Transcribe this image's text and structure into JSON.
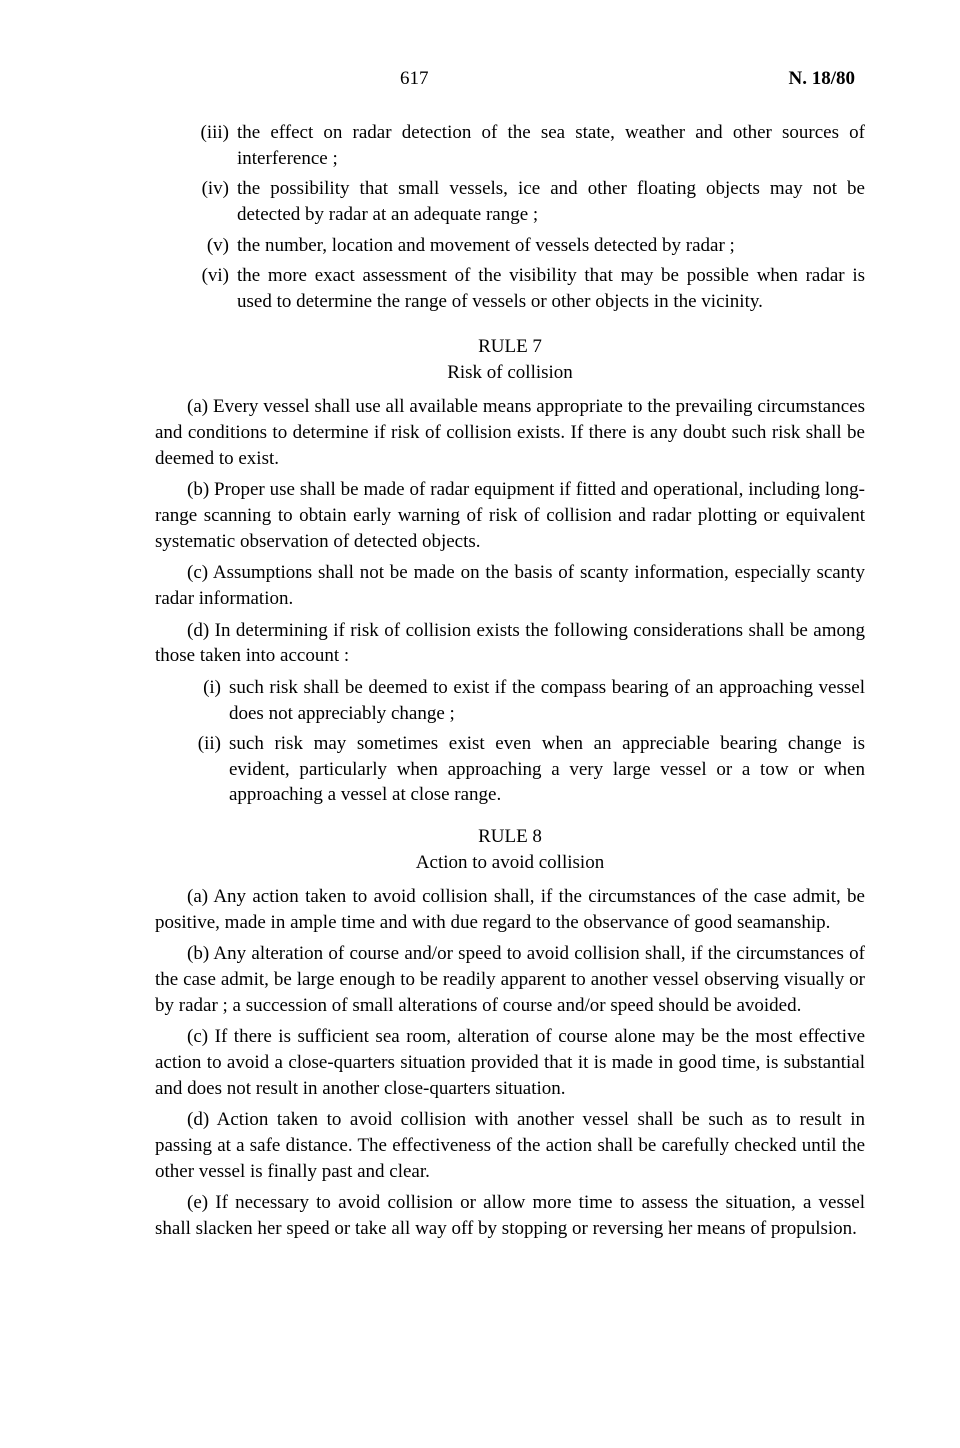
{
  "header": {
    "page_number": "617",
    "doc_ref": "N. 18/80"
  },
  "top_items": [
    {
      "marker": "(iii)",
      "text": "the effect on radar detection of the sea state, weather and other sources of interference ;"
    },
    {
      "marker": "(iv)",
      "text": "the possibility that small vessels, ice and other floating objects may not be detected by radar at an adequate range ;"
    },
    {
      "marker": "(v)",
      "text": "the number, location and movement of vessels detected by radar ;"
    },
    {
      "marker": "(vi)",
      "text": "the more exact assessment of the visibility that may be possible when radar is used to determine the range of vessels or other objects in the vicinity."
    }
  ],
  "rule7": {
    "heading": "RULE 7",
    "subtitle": "Risk of collision",
    "paras": [
      "(a) Every vessel shall use all available means appropriate to the prevailing circumstances and conditions to determine if risk of collision exists. If there is any doubt such risk shall be deemed to exist.",
      "(b) Proper use shall be made of radar equipment if fitted and operational, including long-range scanning to obtain early warning of risk of collision and radar plotting or equivalent systematic observation of detected objects.",
      "(c) Assumptions shall not be made on the basis of scanty information, especially scanty radar information.",
      "(d) In determining if risk of collision exists the following considerations shall be among those taken into account :"
    ],
    "sub_items": [
      {
        "marker": "(i)",
        "text": "such risk shall be deemed to exist if the compass bearing of an approaching vessel does not appreciably change ;"
      },
      {
        "marker": "(ii)",
        "text": "such risk may sometimes exist even when an appreciable bearing change is evident, particularly when approaching a very large vessel or a tow or when approaching a vessel at close range."
      }
    ]
  },
  "rule8": {
    "heading": "RULE 8",
    "subtitle": "Action to avoid collision",
    "paras": [
      "(a) Any action taken to avoid collision shall, if the circumstances of the case admit, be positive, made in ample time and with due regard to the observance of good seamanship.",
      "(b) Any alteration of course and/or speed to avoid collision shall, if the circumstances of the case admit, be large enough to be readily apparent to another vessel observing visually or by radar ; a succession of small alterations of course and/or speed should be avoided.",
      "(c) If there is sufficient sea room, alteration of course alone may be the most effective action to avoid a close-quarters situation provided that it is made in good time, is substantial and does not result in another close-quarters situation.",
      "(d) Action taken to avoid collision with another vessel shall be such as to result in passing at a safe distance. The effectiveness of the action shall be carefully checked until the other vessel is finally past and clear.",
      "(e) If necessary to avoid collision or allow more time to assess the situation, a vessel shall slacken her speed or take all way off by stopping or reversing her means of propulsion."
    ]
  }
}
